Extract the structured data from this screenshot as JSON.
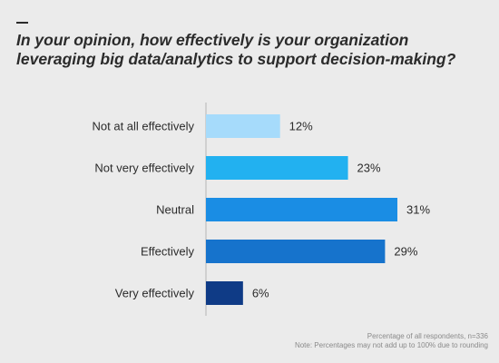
{
  "chart_data": {
    "type": "bar",
    "orientation": "horizontal",
    "title": "In your opinion, how effectively is your organization leveraging big data/analytics to support decision-making?",
    "categories": [
      "Not at all effectively",
      "Not very effectively",
      "Neutral",
      "Effectively",
      "Very effectively"
    ],
    "values": [
      12,
      23,
      31,
      29,
      6
    ],
    "value_labels": [
      "12%",
      "23%",
      "31%",
      "29%",
      "6%"
    ],
    "colors": [
      "#a6dbfb",
      "#22b1f0",
      "#1a8de4",
      "#1673cc",
      "#0f3b86"
    ],
    "xlim": [
      0,
      31
    ],
    "grid": false,
    "legend": "none"
  },
  "footnote": {
    "line1": "Percentage of all respondents, n=336",
    "line2": "Note: Percentages may not add up to 100% due to rounding"
  }
}
